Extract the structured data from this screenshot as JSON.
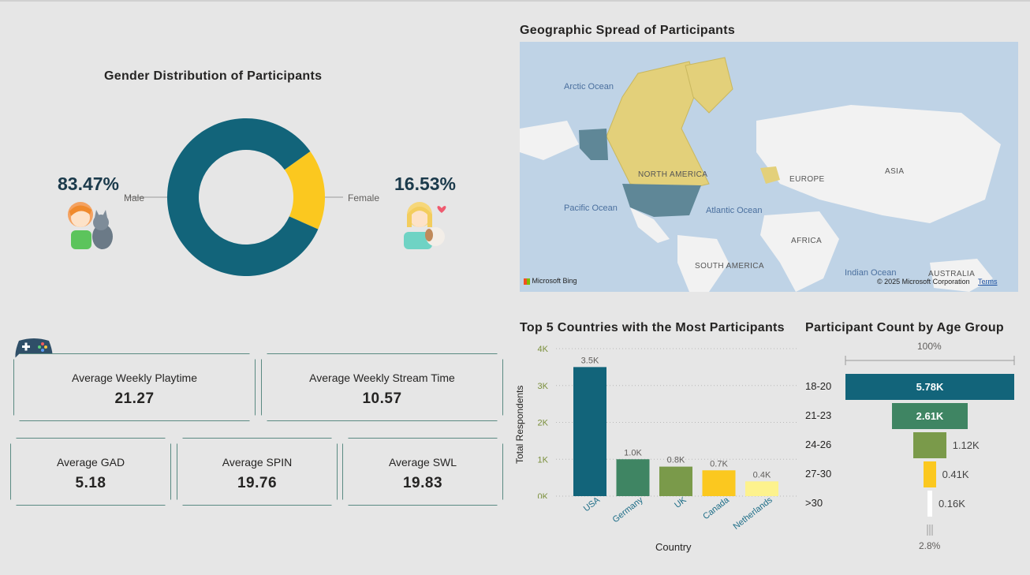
{
  "gender": {
    "title": "Gender Distribution of Participants",
    "male": {
      "label": "Male",
      "pct": "83.47%",
      "value": 83.47,
      "color": "#12647a"
    },
    "female": {
      "label": "Female",
      "pct": "16.53%",
      "value": 16.53,
      "color": "#fbc81f"
    }
  },
  "map": {
    "title": "Geographic Spread of Participants",
    "oceans": [
      "Arctic Ocean",
      "Pacific Ocean",
      "Atlantic Ocean",
      "Indian Ocean"
    ],
    "continents": [
      "NORTH AMERICA",
      "EUROPE",
      "ASIA",
      "AFRICA",
      "SOUTH AMERICA",
      "AUSTRALIA"
    ],
    "attribution": "Microsoft Bing",
    "copyright": "© 2025 Microsoft Corporation",
    "terms": "Terms"
  },
  "kpis": [
    {
      "label": "Average Weekly Playtime",
      "value": "21.27"
    },
    {
      "label": "Average Weekly Stream Time",
      "value": "10.57"
    },
    {
      "label": "Average GAD",
      "value": "5.18"
    },
    {
      "label": "Average SPIN",
      "value": "19.76"
    },
    {
      "label": "Average SWL",
      "value": "19.83"
    }
  ],
  "chart_data": [
    {
      "type": "bar",
      "title": "Top 5 Countries with the Most Participants",
      "xlabel": "Country",
      "ylabel": "Total Respondents",
      "categories": [
        "USA",
        "Germany",
        "UK",
        "Canada",
        "Netherlands"
      ],
      "values": [
        3500,
        1000,
        800,
        700,
        400
      ],
      "data_labels": [
        "3.5K",
        "1.0K",
        "0.8K",
        "0.7K",
        "0.4K"
      ],
      "colors": [
        "#12647a",
        "#3f8563",
        "#7a9a4a",
        "#fbc81f",
        "#fdf28d"
      ],
      "yticks": [
        "0K",
        "1K",
        "2K",
        "3K",
        "4K"
      ],
      "ylim": [
        0,
        4000
      ],
      "grid": true
    },
    {
      "type": "bar",
      "title": "Participant Count by Age Group",
      "categories": [
        "18-20",
        "21-23",
        "24-26",
        "27-30",
        ">30"
      ],
      "values": [
        5780,
        2610,
        1120,
        410,
        160
      ],
      "data_labels": [
        "5.78K",
        "2.61K",
        "1.12K",
        "0.41K",
        "0.16K"
      ],
      "colors": [
        "#12647a",
        "#3f8563",
        "#7a9a4a",
        "#fbc81f",
        "#ffffff"
      ],
      "top_pct": "100%",
      "bottom_pct": "2.8%"
    }
  ]
}
